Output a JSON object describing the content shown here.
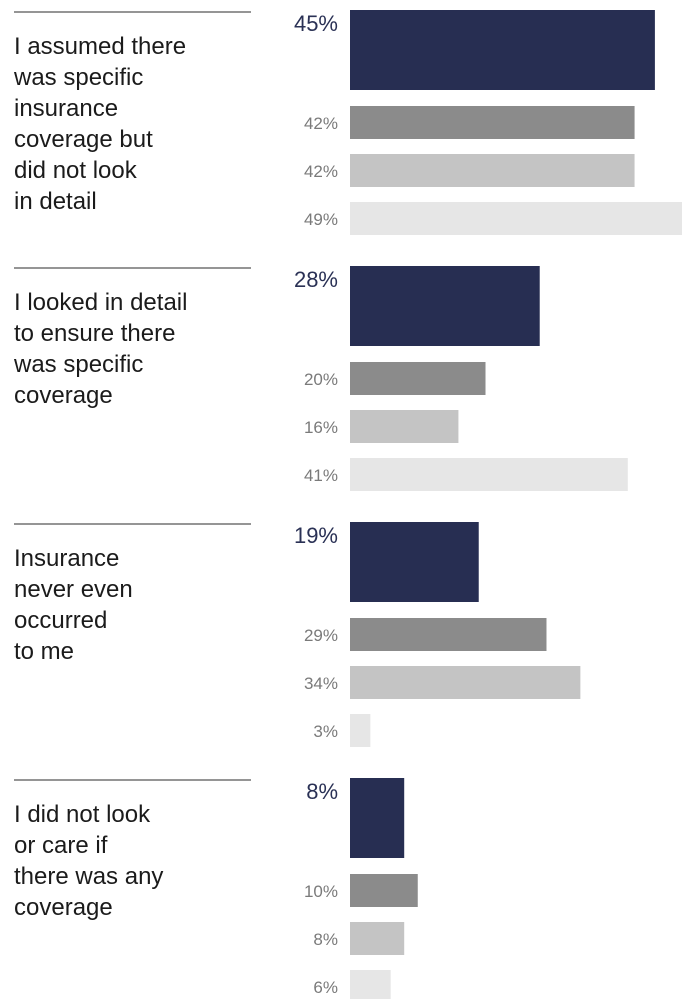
{
  "chart_data": {
    "type": "bar",
    "orientation": "horizontal",
    "categories": [
      [
        "I assumed there",
        "was specific",
        "insurance",
        "coverage but",
        "did not look",
        "in detail"
      ],
      [
        "I looked in detail",
        "to ensure there",
        "was specific",
        "coverage"
      ],
      [
        "Insurance",
        "never even",
        "occurred",
        "to me"
      ],
      [
        "I did not look",
        "or care if",
        "there was any",
        "coverage"
      ]
    ],
    "series": [
      {
        "values": [
          45,
          28,
          19,
          8
        ],
        "labels": [
          "45%",
          "28%",
          "19%",
          "8%"
        ],
        "color": "#272e52"
      },
      {
        "values": [
          42,
          20,
          29,
          10
        ],
        "labels": [
          "42%",
          "20%",
          "29%",
          "10%"
        ],
        "color": "#8b8b8b"
      },
      {
        "values": [
          42,
          16,
          34,
          8
        ],
        "labels": [
          "42%",
          "16%",
          "34%",
          "8%"
        ],
        "color": "#c4c4c4"
      },
      {
        "values": [
          49,
          41,
          3,
          6
        ],
        "labels": [
          "49%",
          "41%",
          "3%",
          "6%"
        ],
        "color": "#e6e6e6"
      }
    ],
    "xlim": [
      0,
      49
    ],
    "grid": false,
    "legend": "none"
  }
}
